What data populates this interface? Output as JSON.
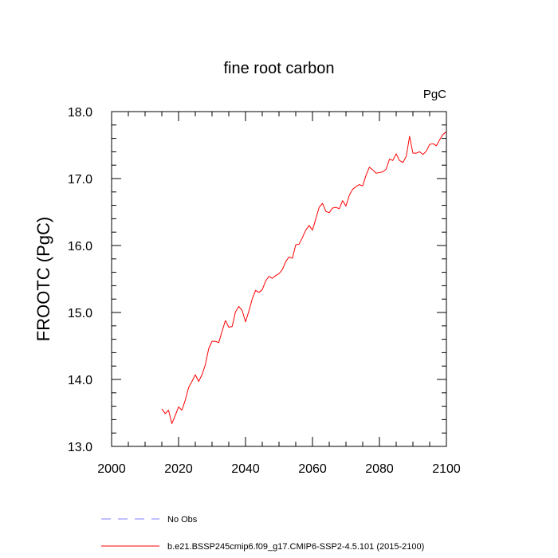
{
  "chart_data": {
    "type": "line",
    "title": "fine root carbon",
    "units_label": "PgC",
    "ylabel": "FROOTC  (PgC)",
    "xlabel": "",
    "xlim": [
      2000,
      2100
    ],
    "ylim": [
      13.0,
      18.0
    ],
    "x_ticks": [
      2000,
      2020,
      2040,
      2060,
      2080,
      2100
    ],
    "y_ticks": [
      13.0,
      14.0,
      15.0,
      16.0,
      17.0,
      18.0
    ],
    "x_tick_labels": [
      "2000",
      "2020",
      "2040",
      "2060",
      "2080",
      "2100"
    ],
    "y_tick_labels": [
      "13.0",
      "14.0",
      "15.0",
      "16.0",
      "17.0",
      "18.0"
    ],
    "grid": false,
    "legend_position": "bottom",
    "legend": [
      {
        "label": "No Obs",
        "color": "#8080ff",
        "style": "dashed"
      },
      {
        "label": "b.e21.BSSP245cmip6.f09_g17.CMIP6-SSP2-4.5.101 (2015-2100)",
        "color": "#ff0000",
        "style": "solid"
      }
    ],
    "series": [
      {
        "name": "b.e21.BSSP245cmip6.f09_g17.CMIP6-SSP2-4.5.101 (2015-2100)",
        "color": "#ff0000",
        "x": [
          2015,
          2016,
          2017,
          2018,
          2019,
          2020,
          2021,
          2022,
          2023,
          2024,
          2025,
          2026,
          2027,
          2028,
          2029,
          2030,
          2031,
          2032,
          2033,
          2034,
          2035,
          2036,
          2037,
          2038,
          2039,
          2040,
          2041,
          2042,
          2043,
          2044,
          2045,
          2046,
          2047,
          2048,
          2049,
          2050,
          2051,
          2052,
          2053,
          2054,
          2055,
          2056,
          2057,
          2058,
          2059,
          2060,
          2061,
          2062,
          2063,
          2064,
          2065,
          2066,
          2067,
          2068,
          2069,
          2070,
          2071,
          2072,
          2073,
          2074,
          2075,
          2076,
          2077,
          2078,
          2079,
          2080,
          2081,
          2082,
          2083,
          2084,
          2085,
          2086,
          2087,
          2088,
          2089,
          2090,
          2091,
          2092,
          2093,
          2094,
          2095,
          2096,
          2097,
          2098,
          2099,
          2100
        ],
        "values": [
          13.56,
          13.49,
          13.54,
          13.34,
          13.46,
          13.59,
          13.54,
          13.69,
          13.88,
          13.97,
          14.07,
          13.97,
          14.07,
          14.22,
          14.46,
          14.57,
          14.57,
          14.55,
          14.72,
          14.88,
          14.78,
          14.79,
          15.01,
          15.09,
          15.03,
          14.86,
          15.02,
          15.2,
          15.33,
          15.3,
          15.34,
          15.47,
          15.54,
          15.51,
          15.55,
          15.58,
          15.64,
          15.76,
          15.83,
          15.81,
          16.01,
          16.02,
          16.12,
          16.23,
          16.3,
          16.23,
          16.4,
          16.57,
          16.63,
          16.51,
          16.49,
          16.56,
          16.57,
          16.55,
          16.67,
          16.59,
          16.75,
          16.84,
          16.88,
          16.91,
          16.89,
          17.05,
          17.17,
          17.13,
          17.08,
          17.09,
          17.1,
          17.14,
          17.29,
          17.27,
          17.37,
          17.27,
          17.24,
          17.33,
          17.63,
          17.38,
          17.38,
          17.4,
          17.36,
          17.41,
          17.51,
          17.52,
          17.49,
          17.58,
          17.66,
          17.7
        ]
      }
    ]
  }
}
